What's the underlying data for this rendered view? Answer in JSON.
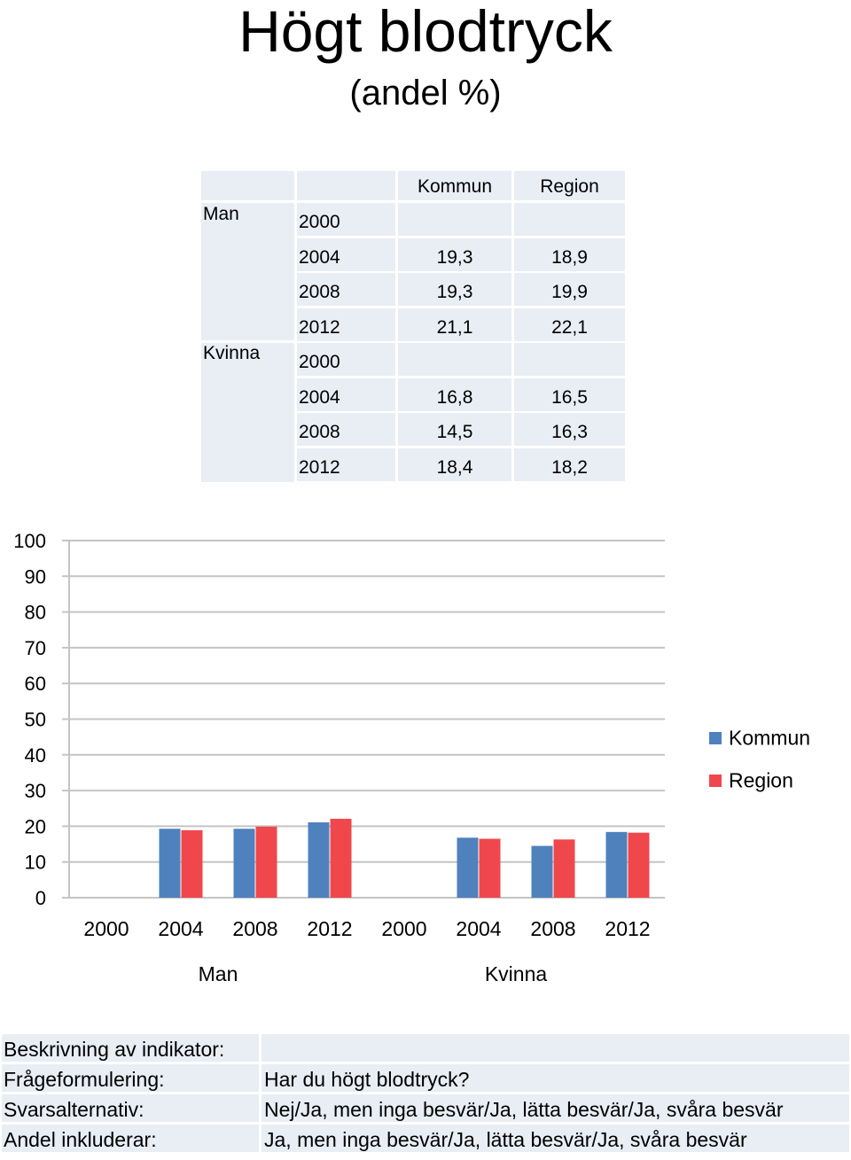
{
  "title": "Högt blodtryck",
  "subtitle": "(andel %)",
  "table": {
    "headers": [
      "Kommun",
      "Region"
    ],
    "groups": [
      {
        "name": "Man",
        "rows": [
          {
            "year": "2000",
            "kommun": "",
            "region": ""
          },
          {
            "year": "2004",
            "kommun": "19,3",
            "region": "18,9"
          },
          {
            "year": "2008",
            "kommun": "19,3",
            "region": "19,9"
          },
          {
            "year": "2012",
            "kommun": "21,1",
            "region": "22,1"
          }
        ]
      },
      {
        "name": "Kvinna",
        "rows": [
          {
            "year": "2000",
            "kommun": "",
            "region": ""
          },
          {
            "year": "2004",
            "kommun": "16,8",
            "region": "16,5"
          },
          {
            "year": "2008",
            "kommun": "14,5",
            "region": "16,3"
          },
          {
            "year": "2012",
            "kommun": "18,4",
            "region": "18,2"
          }
        ]
      }
    ]
  },
  "chart_data": {
    "type": "bar",
    "categories": [
      "2000",
      "2004",
      "2008",
      "2012",
      "2000",
      "2004",
      "2008",
      "2012"
    ],
    "groups": [
      {
        "name": "Man",
        "start": 0,
        "count": 4
      },
      {
        "name": "Kvinna",
        "start": 4,
        "count": 4
      }
    ],
    "series": [
      {
        "name": "Kommun",
        "color": "#4f81bd",
        "values": [
          null,
          19.3,
          19.3,
          21.1,
          null,
          16.8,
          14.5,
          18.4
        ]
      },
      {
        "name": "Region",
        "color": "#f0474c",
        "values": [
          null,
          18.9,
          19.9,
          22.1,
          null,
          16.5,
          16.3,
          18.2
        ]
      }
    ],
    "ylim": [
      0,
      100
    ],
    "yticks": [
      0,
      10,
      20,
      30,
      40,
      50,
      60,
      70,
      80,
      90,
      100
    ],
    "grid": true,
    "legend": "right"
  },
  "info": [
    {
      "label": "Beskrivning av indikator:",
      "value": ""
    },
    {
      "label": "Frågeformulering:",
      "value": "Har du högt blodtryck?"
    },
    {
      "label": "Svarsalternativ:",
      "value": "Nej/Ja, men inga besvär/Ja, lätta besvär/Ja, svåra besvär"
    },
    {
      "label": "Andel inkluderar:",
      "value": "Ja, men inga besvär/Ja, lätta besvär/Ja, svåra besvär"
    }
  ]
}
